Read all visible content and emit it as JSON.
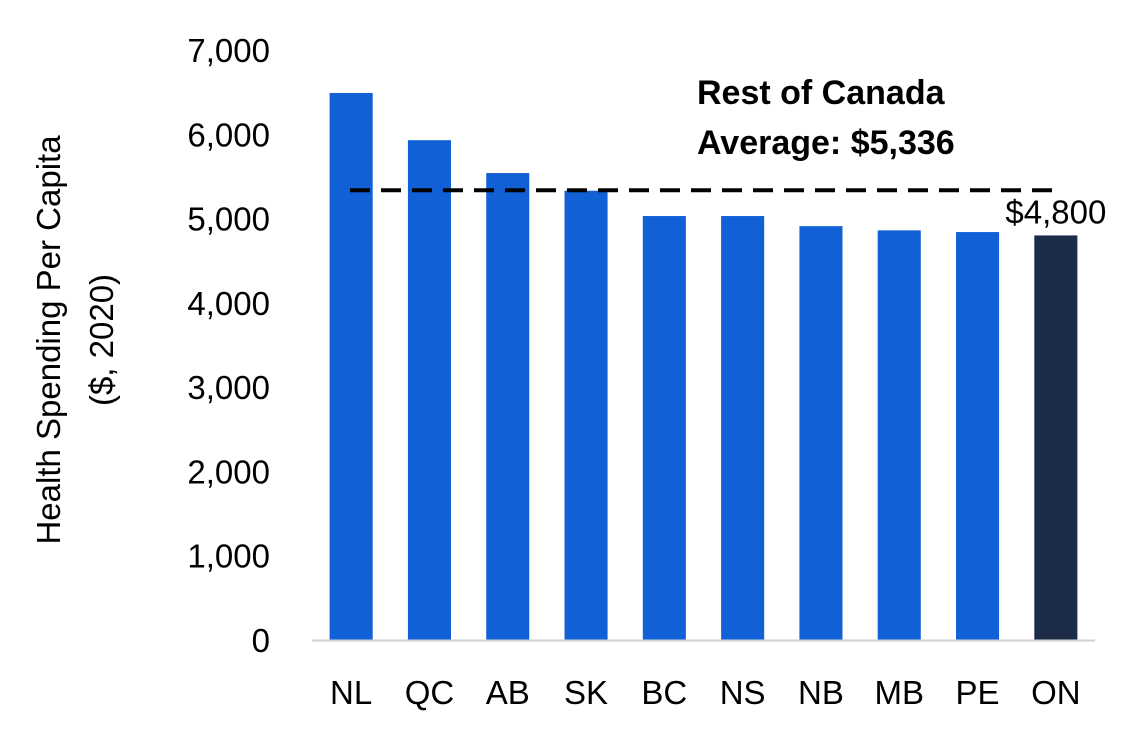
{
  "chart_data": {
    "type": "bar",
    "title": "",
    "xlabel": "",
    "ylabel_lines": [
      "Health Spending Per Capita",
      "($, 2020)"
    ],
    "categories": [
      "NL",
      "QC",
      "AB",
      "SK",
      "BC",
      "NS",
      "NB",
      "MB",
      "PE",
      "ON"
    ],
    "values": [
      6490,
      5930,
      5540,
      5330,
      5030,
      5030,
      4910,
      4860,
      4840,
      4800
    ],
    "ylim": [
      0,
      7000
    ],
    "yticks": [
      0,
      1000,
      2000,
      3000,
      4000,
      5000,
      6000,
      7000
    ],
    "ytick_labels": [
      "0",
      "1,000",
      "2,000",
      "3,000",
      "4,000",
      "5,000",
      "6,000",
      "7,000"
    ],
    "grid": false,
    "colors": {
      "default_bar": "#1160D6",
      "highlight_bar": "#1C2B48",
      "reference_line": "#000000",
      "axis": "#d0d0d0"
    },
    "highlight_category": "ON",
    "data_labels": [
      {
        "category": "ON",
        "text": "$4,800"
      }
    ],
    "reference_line": {
      "value": 5336,
      "style": "dashed",
      "label_lines": [
        "Rest of Canada",
        "Average: $5,336"
      ]
    }
  }
}
